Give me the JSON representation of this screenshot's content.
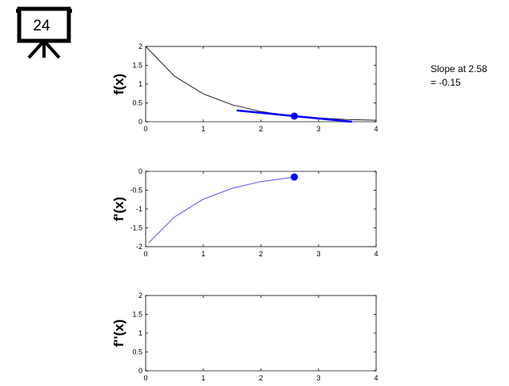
{
  "badge": {
    "number": "24",
    "icon": "presentation-board-icon"
  },
  "annotation": {
    "line1": "Slope at 2.58",
    "line2": "= -0.15"
  },
  "chart_data": [
    {
      "type": "line",
      "ylabel": "f(x)",
      "xlim": [
        0,
        4
      ],
      "ylim": [
        0,
        2
      ],
      "xticks": [
        "0",
        "1",
        "2",
        "3",
        "4"
      ],
      "yticks": [
        "0",
        "0.5",
        "1",
        "1.5",
        "2"
      ],
      "series": [
        {
          "x": [
            0,
            0.5,
            1,
            1.5,
            2,
            2.5,
            3,
            3.5,
            4
          ],
          "y": [
            2,
            1.21,
            0.74,
            0.45,
            0.27,
            0.16,
            0.1,
            0.06,
            0.04
          ],
          "color": "#222222"
        }
      ],
      "tangent": {
        "x": [
          1.58,
          3.58
        ],
        "y": [
          0.3,
          0.0
        ],
        "color": "#0000ff"
      },
      "point": {
        "x": 2.58,
        "y": 0.15,
        "color": "#0000ff"
      },
      "baseline": {
        "y": 0,
        "color": "#888888"
      }
    },
    {
      "type": "line",
      "ylabel": "f'(x)",
      "xlim": [
        0,
        4
      ],
      "ylim": [
        -2,
        0
      ],
      "xticks": [
        "0",
        "1",
        "2",
        "3",
        "4"
      ],
      "yticks": [
        "0",
        "-0.5",
        "-1",
        "-1.5",
        "-2"
      ],
      "series": [
        {
          "x": [
            0.05,
            0.5,
            1,
            1.5,
            2,
            2.58
          ],
          "y": [
            -1.9,
            -1.21,
            -0.74,
            -0.45,
            -0.27,
            -0.15
          ],
          "color": "#5555ff"
        }
      ],
      "point": {
        "x": 2.58,
        "y": -0.15,
        "color": "#0000ff"
      },
      "baseline": {
        "y": 0,
        "color": "#888888"
      }
    },
    {
      "type": "line",
      "ylabel": "f''(x)",
      "xlim": [
        0,
        4
      ],
      "ylim": [
        0,
        2
      ],
      "xticks": [
        "0",
        "1",
        "2",
        "3",
        "4"
      ],
      "yticks": [
        "0",
        "0.5",
        "1",
        "1.5",
        "2"
      ],
      "series": [],
      "baseline": {
        "y": 0,
        "color": "#888888"
      }
    }
  ]
}
